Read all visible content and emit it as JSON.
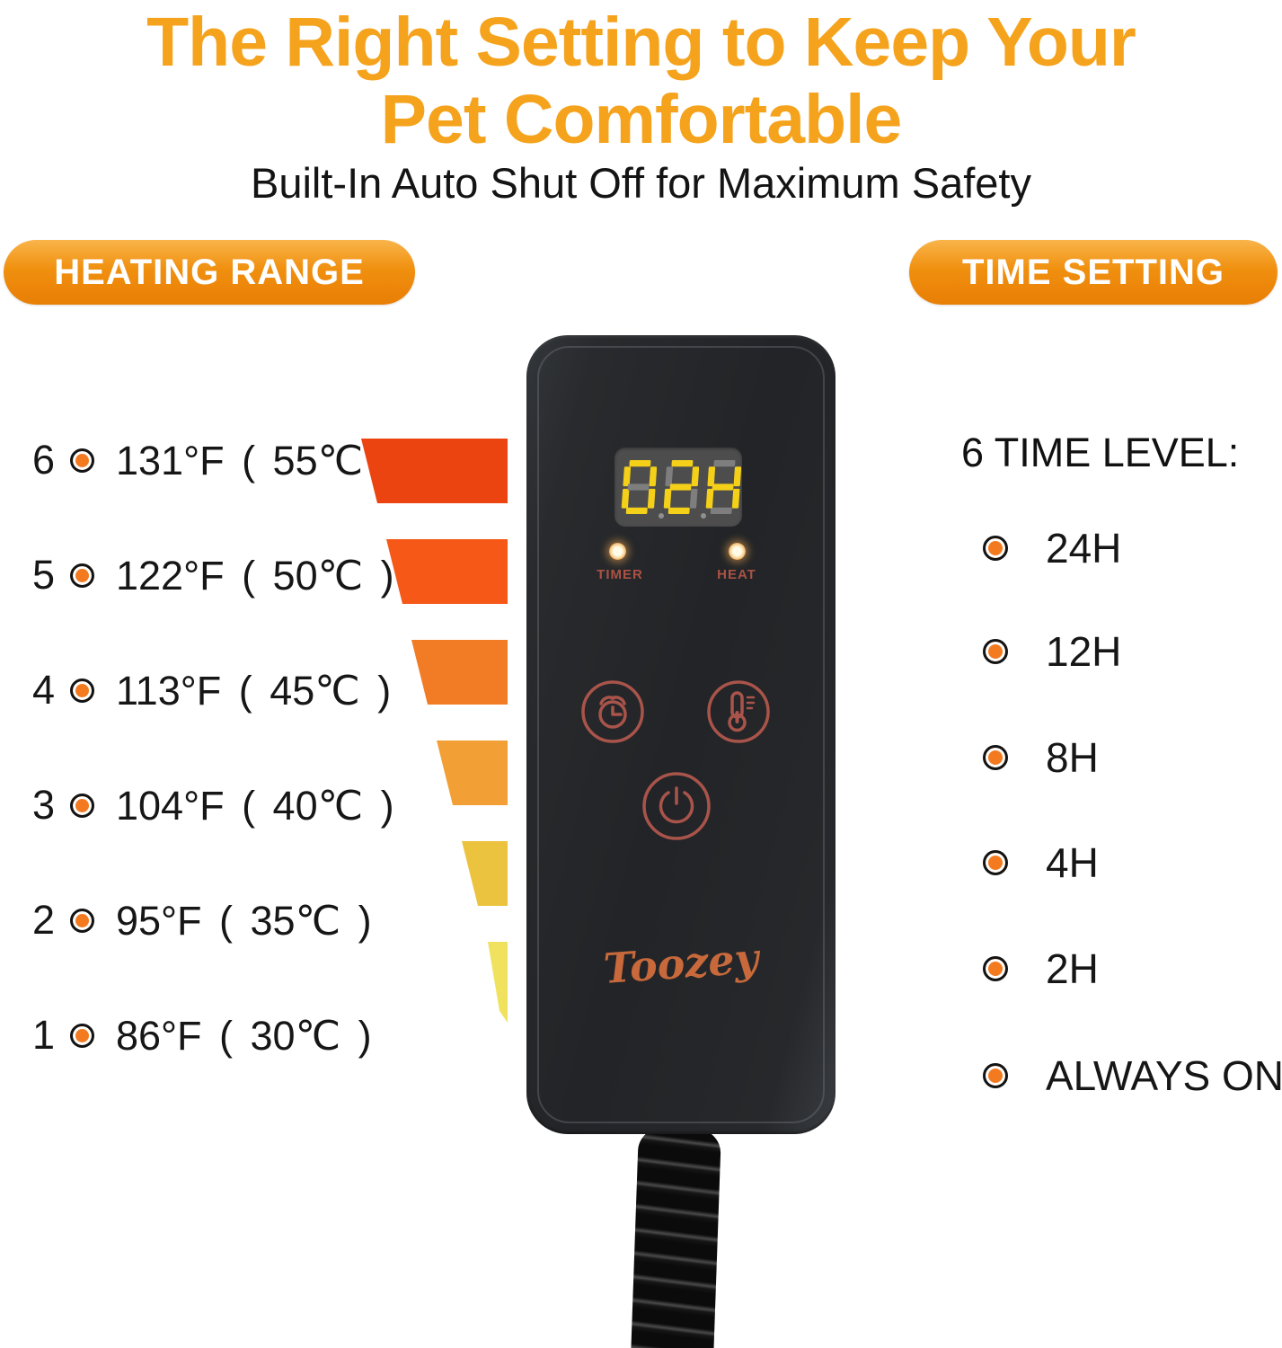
{
  "header": {
    "title_line1": "The Right Setting to Keep Your",
    "title_line2": "Pet Comfortable",
    "title_color": "#f5a31d",
    "subtitle": "Built-In Auto Shut Off for Maximum Safety"
  },
  "badges": {
    "heating_range": "HEATING RANGE",
    "time_setting": "TIME SETTING",
    "pill_color_top": "#f9b44a",
    "pill_color_bottom": "#e87f06"
  },
  "heating_range": {
    "bullet_color": "#f47a1f",
    "levels": [
      {
        "level": "6",
        "temperature": "131°F ( 55℃ )",
        "bar_color": "#ec4410"
      },
      {
        "level": "5",
        "temperature": "122°F ( 50℃ )",
        "bar_color": "#f65818"
      },
      {
        "level": "4",
        "temperature": "113°F ( 45℃ )",
        "bar_color": "#f27c26"
      },
      {
        "level": "3",
        "temperature": "104°F ( 40℃ )",
        "bar_color": "#f2a036"
      },
      {
        "level": "2",
        "temperature": "95°F ( 35℃ )",
        "bar_color": "#ecc33e"
      },
      {
        "level": "1",
        "temperature": "86°F ( 30℃ )",
        "bar_color": "#f0e25e"
      }
    ]
  },
  "time_setting": {
    "heading": "6 TIME LEVEL:",
    "options": [
      {
        "label": "24H"
      },
      {
        "label": "12H"
      },
      {
        "label": "8H"
      },
      {
        "label": "4H"
      },
      {
        "label": "2H"
      },
      {
        "label": "ALWAYS ON"
      }
    ]
  },
  "device": {
    "brand": "Toozey",
    "accent_color": "#a9544a",
    "display": {
      "value": "02H",
      "lit_color": "#f5d019",
      "unlit_color": "#7e7e7e",
      "panel_color": "#4d4d4d"
    },
    "indicators": [
      {
        "label": "TIMER"
      },
      {
        "label": "HEAT"
      }
    ]
  }
}
